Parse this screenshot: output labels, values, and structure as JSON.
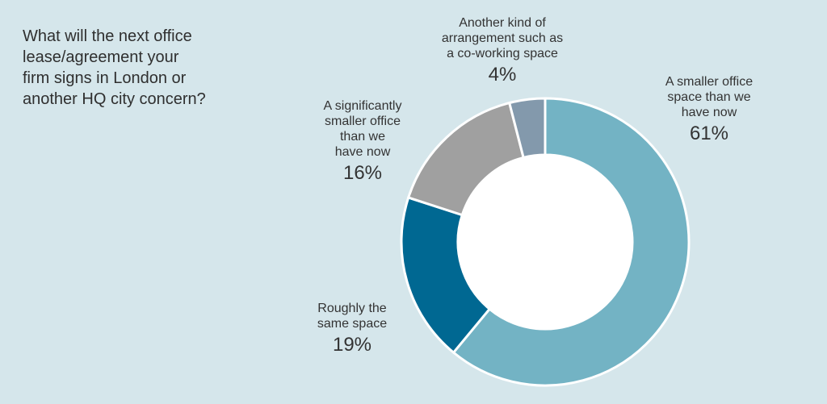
{
  "chart_data": {
    "type": "pie",
    "donut": true,
    "title_lines": [
      "What will the next office",
      "lease/agreement your",
      "firm signs in London or",
      "another HQ city concern?"
    ],
    "slices": [
      {
        "label_lines": [
          "A smaller office",
          "space than we",
          "have now"
        ],
        "value": 61,
        "display": "61%",
        "color": "#73b3c4"
      },
      {
        "label_lines": [
          "Roughly the",
          "same space"
        ],
        "value": 19,
        "display": "19%",
        "color": "#006892"
      },
      {
        "label_lines": [
          "A significantly",
          "smaller office",
          "than we",
          "have now"
        ],
        "value": 16,
        "display": "16%",
        "color": "#a0a0a0"
      },
      {
        "label_lines": [
          "Another kind of",
          "arrangement such as",
          "a co-working space"
        ],
        "value": 4,
        "display": "4%",
        "color": "#8399ac"
      }
    ]
  }
}
